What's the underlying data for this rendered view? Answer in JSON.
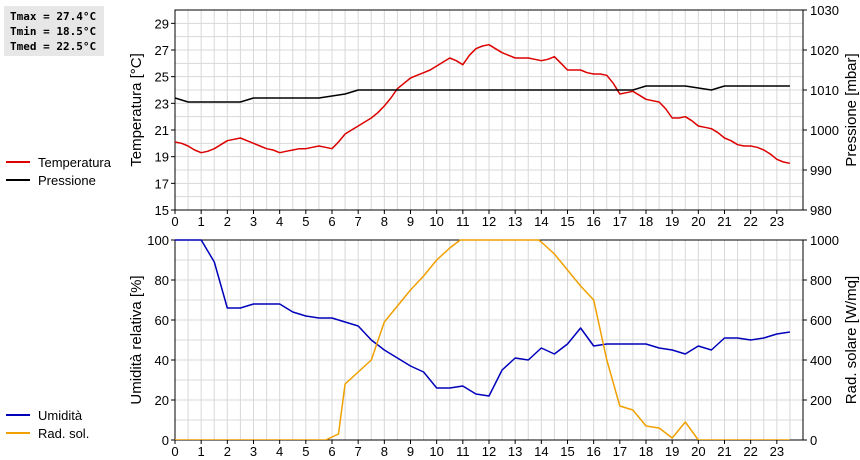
{
  "stats": {
    "tmax": "Tmax = 27.4°C",
    "tmin": "Tmin = 18.5°C",
    "tmed": "Tmed = 22.5°C"
  },
  "colors": {
    "temperature": "#dd0000",
    "pressure": "#000000",
    "humidity": "#0000bb",
    "radiation": "#f0a000",
    "grid": "#d8d8d8"
  },
  "chart_data": [
    {
      "type": "line",
      "x_ticks": [
        "0",
        "1",
        "2",
        "3",
        "4",
        "5",
        "6",
        "7",
        "8",
        "9",
        "10",
        "11",
        "12",
        "13",
        "14",
        "15",
        "16",
        "17",
        "18",
        "19",
        "20",
        "21",
        "22",
        "23"
      ],
      "xlim": [
        0,
        24
      ],
      "ylabel": "Temperatura [°C]",
      "ylim": [
        15,
        30
      ],
      "y_ticks": [
        "15",
        "17",
        "19",
        "21",
        "23",
        "25",
        "27",
        "29"
      ],
      "y2label": "Pressione [mbar]",
      "y2lim": [
        980,
        1030
      ],
      "y2_ticks": [
        "980",
        "990",
        "1000",
        "1010",
        "1020",
        "1030"
      ],
      "grid": true,
      "legend_placement": "left",
      "series": [
        {
          "name": "Temperatura",
          "axis": "left",
          "color": "#dd0000",
          "x": [
            0,
            0.25,
            0.5,
            0.75,
            1,
            1.25,
            1.5,
            1.75,
            2,
            2.25,
            2.5,
            2.75,
            3,
            3.25,
            3.5,
            3.75,
            4,
            4.25,
            4.5,
            4.75,
            5,
            5.25,
            5.5,
            5.75,
            6,
            6.25,
            6.5,
            6.75,
            7,
            7.25,
            7.5,
            7.75,
            8,
            8.25,
            8.5,
            8.75,
            9,
            9.25,
            9.5,
            9.75,
            10,
            10.25,
            10.5,
            10.75,
            11,
            11.25,
            11.5,
            11.75,
            12,
            12.25,
            12.5,
            12.75,
            13,
            13.25,
            13.5,
            13.75,
            14,
            14.25,
            14.5,
            14.75,
            15,
            15.25,
            15.5,
            15.75,
            16,
            16.25,
            16.5,
            16.75,
            17,
            17.25,
            17.5,
            17.75,
            18,
            18.25,
            18.5,
            18.75,
            19,
            19.25,
            19.5,
            19.75,
            20,
            20.25,
            20.5,
            20.75,
            21,
            21.25,
            21.5,
            21.75,
            22,
            22.25,
            22.5,
            22.75,
            23,
            23.25,
            23.5
          ],
          "values": [
            20.1,
            20.0,
            19.8,
            19.5,
            19.3,
            19.4,
            19.6,
            19.9,
            20.2,
            20.3,
            20.4,
            20.2,
            20.0,
            19.8,
            19.6,
            19.5,
            19.3,
            19.4,
            19.5,
            19.6,
            19.6,
            19.7,
            19.8,
            19.7,
            19.6,
            20.1,
            20.7,
            21.0,
            21.3,
            21.6,
            21.9,
            22.3,
            22.8,
            23.4,
            24.1,
            24.5,
            24.9,
            25.1,
            25.3,
            25.5,
            25.8,
            26.1,
            26.4,
            26.2,
            25.9,
            26.6,
            27.1,
            27.3,
            27.4,
            27.1,
            26.8,
            26.6,
            26.4,
            26.4,
            26.4,
            26.3,
            26.2,
            26.3,
            26.5,
            26.0,
            25.5,
            25.5,
            25.5,
            25.3,
            25.2,
            25.2,
            25.1,
            24.5,
            23.7,
            23.8,
            23.9,
            23.6,
            23.3,
            23.2,
            23.1,
            22.6,
            21.9,
            21.9,
            22.0,
            21.7,
            21.3,
            21.2,
            21.1,
            20.8,
            20.4,
            20.2,
            19.9,
            19.8,
            19.8,
            19.7,
            19.5,
            19.2,
            18.8,
            18.6,
            18.5
          ]
        },
        {
          "name": "Pressione",
          "axis": "right",
          "color": "#000000",
          "x": [
            0,
            0.5,
            0.5,
            2.5,
            2.5,
            3,
            3,
            5.5,
            5.5,
            6.5,
            6.5,
            7,
            7,
            17.5,
            17.5,
            18,
            18,
            19.5,
            19.5,
            20.5,
            20.5,
            21,
            21,
            23.5
          ],
          "values": [
            1008,
            1007,
            1007,
            1007,
            1007,
            1008,
            1008,
            1008,
            1008,
            1009,
            1009,
            1010,
            1010,
            1010,
            1010,
            1011,
            1011,
            1011,
            1011,
            1010,
            1010,
            1011,
            1011,
            1011
          ]
        }
      ]
    },
    {
      "type": "line",
      "x_ticks": [
        "0",
        "1",
        "2",
        "3",
        "4",
        "5",
        "6",
        "7",
        "8",
        "9",
        "10",
        "11",
        "12",
        "13",
        "14",
        "15",
        "16",
        "17",
        "18",
        "19",
        "20",
        "21",
        "22",
        "23"
      ],
      "xlim": [
        0,
        24
      ],
      "ylabel": "Umidità relativa [%]",
      "ylim": [
        0,
        100
      ],
      "y_ticks": [
        "0",
        "20",
        "40",
        "60",
        "80",
        "100"
      ],
      "y2label": "Rad. solare [W/mq]",
      "y2lim": [
        0,
        1000
      ],
      "y2_ticks": [
        "0",
        "200",
        "400",
        "600",
        "800",
        "1000"
      ],
      "grid": true,
      "legend_placement": "left",
      "series": [
        {
          "name": "Umidità",
          "axis": "left",
          "color": "#0000bb",
          "x": [
            0,
            0.5,
            1,
            1.5,
            2,
            2.5,
            3,
            3.5,
            4,
            4.5,
            5,
            5.5,
            6,
            6.5,
            7,
            7.5,
            8,
            8.5,
            9,
            9.5,
            10,
            10.5,
            11,
            11.5,
            12,
            12.5,
            13,
            13.5,
            14,
            14.5,
            15,
            15.5,
            16,
            16.5,
            17,
            17.5,
            18,
            18.5,
            19,
            19.5,
            20,
            20.5,
            21,
            21.5,
            22,
            22.5,
            23,
            23.5
          ],
          "values": [
            100,
            100,
            100,
            89,
            66,
            66,
            68,
            68,
            68,
            64,
            62,
            61,
            61,
            59,
            57,
            50,
            45,
            41,
            37,
            34,
            26,
            26,
            27,
            23,
            22,
            35,
            41,
            40,
            46,
            43,
            48,
            56,
            47,
            48,
            48,
            48,
            48,
            46,
            45,
            43,
            47,
            45,
            51,
            51,
            50,
            51,
            53,
            54
          ]
        },
        {
          "name": "Rad. sol.",
          "axis": "right",
          "color": "#f0a000",
          "x": [
            0,
            1,
            2,
            3,
            4,
            5,
            5.75,
            6.25,
            6.5,
            7,
            7.5,
            8,
            8.5,
            9,
            9.5,
            10,
            10.5,
            10.9,
            11,
            13.9,
            14,
            14.5,
            15,
            15.5,
            16,
            16.5,
            17,
            17.5,
            18,
            18.5,
            19,
            19.5,
            20,
            21,
            22,
            23,
            23.5
          ],
          "values": [
            0,
            0,
            0,
            0,
            0,
            0,
            0,
            30,
            280,
            340,
            400,
            590,
            670,
            750,
            820,
            900,
            960,
            1000,
            1000,
            1000,
            990,
            930,
            850,
            770,
            700,
            400,
            170,
            150,
            70,
            60,
            10,
            90,
            0,
            0,
            0,
            0,
            0
          ]
        }
      ]
    }
  ]
}
